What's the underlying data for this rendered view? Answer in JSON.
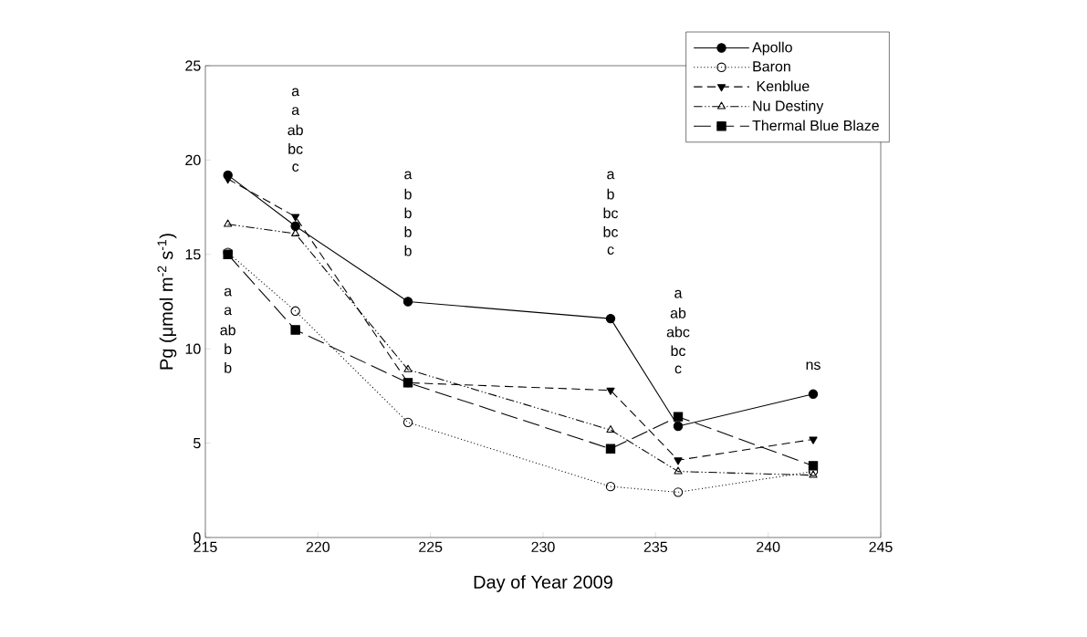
{
  "chart_data": {
    "type": "line",
    "xlabel": "Day of Year 2009",
    "ylabel": "Pg (μmol m$^{-2}$ s$^{-1}$)",
    "xlim": [
      215,
      245
    ],
    "xticks": [
      215,
      220,
      225,
      230,
      235,
      240,
      245
    ],
    "ylim": [
      0,
      25
    ],
    "yticks": [
      0,
      5,
      10,
      15,
      20,
      25
    ],
    "grid": false,
    "legend": "top right",
    "series": [
      {
        "name": "Apollo",
        "color": "#000000",
        "marker": "circle",
        "line_style": "solid",
        "x": [
          216,
          219,
          224,
          233,
          236,
          242
        ],
        "values": [
          19.2,
          16.5,
          12.5,
          11.6,
          5.9,
          7.6
        ]
      },
      {
        "name": "Baron",
        "color": "#000000",
        "marker": "circle-open",
        "line_style": "dotted",
        "x": [
          216,
          219,
          224,
          233,
          236,
          242
        ],
        "values": [
          15.1,
          12.0,
          6.1,
          2.7,
          2.4,
          3.5
        ]
      },
      {
        "name": " Kenblue",
        "color": "#000000",
        "marker": "triangle-down",
        "line_style": "dashed",
        "x": [
          216,
          219,
          224,
          233,
          236,
          242
        ],
        "values": [
          19.0,
          17.0,
          8.2,
          7.8,
          4.1,
          5.2
        ]
      },
      {
        "name": "Nu Destiny",
        "color": "#000000",
        "marker": "triangle-open",
        "line_style": "dashdotdotted",
        "x": [
          216,
          219,
          224,
          233,
          236,
          242
        ],
        "values": [
          16.6,
          16.1,
          8.9,
          5.7,
          3.5,
          3.3
        ]
      },
      {
        "name": "Thermal Blue Blaze",
        "color": "#000000",
        "marker": "square",
        "line_style": "longdashed",
        "x": [
          216,
          219,
          224,
          233,
          236,
          242
        ],
        "values": [
          15.0,
          11.0,
          8.2,
          4.7,
          6.4,
          3.8
        ]
      }
    ],
    "annotations": [
      "a",
      "a",
      "ab",
      "b",
      "b",
      "a",
      "a",
      "ab",
      "bc",
      "c",
      "a",
      "b",
      "b",
      "b",
      "b",
      "a",
      "b",
      "bc",
      "bc",
      "c",
      "a",
      "ab",
      "abc",
      "bc",
      "c",
      "ns"
    ]
  }
}
